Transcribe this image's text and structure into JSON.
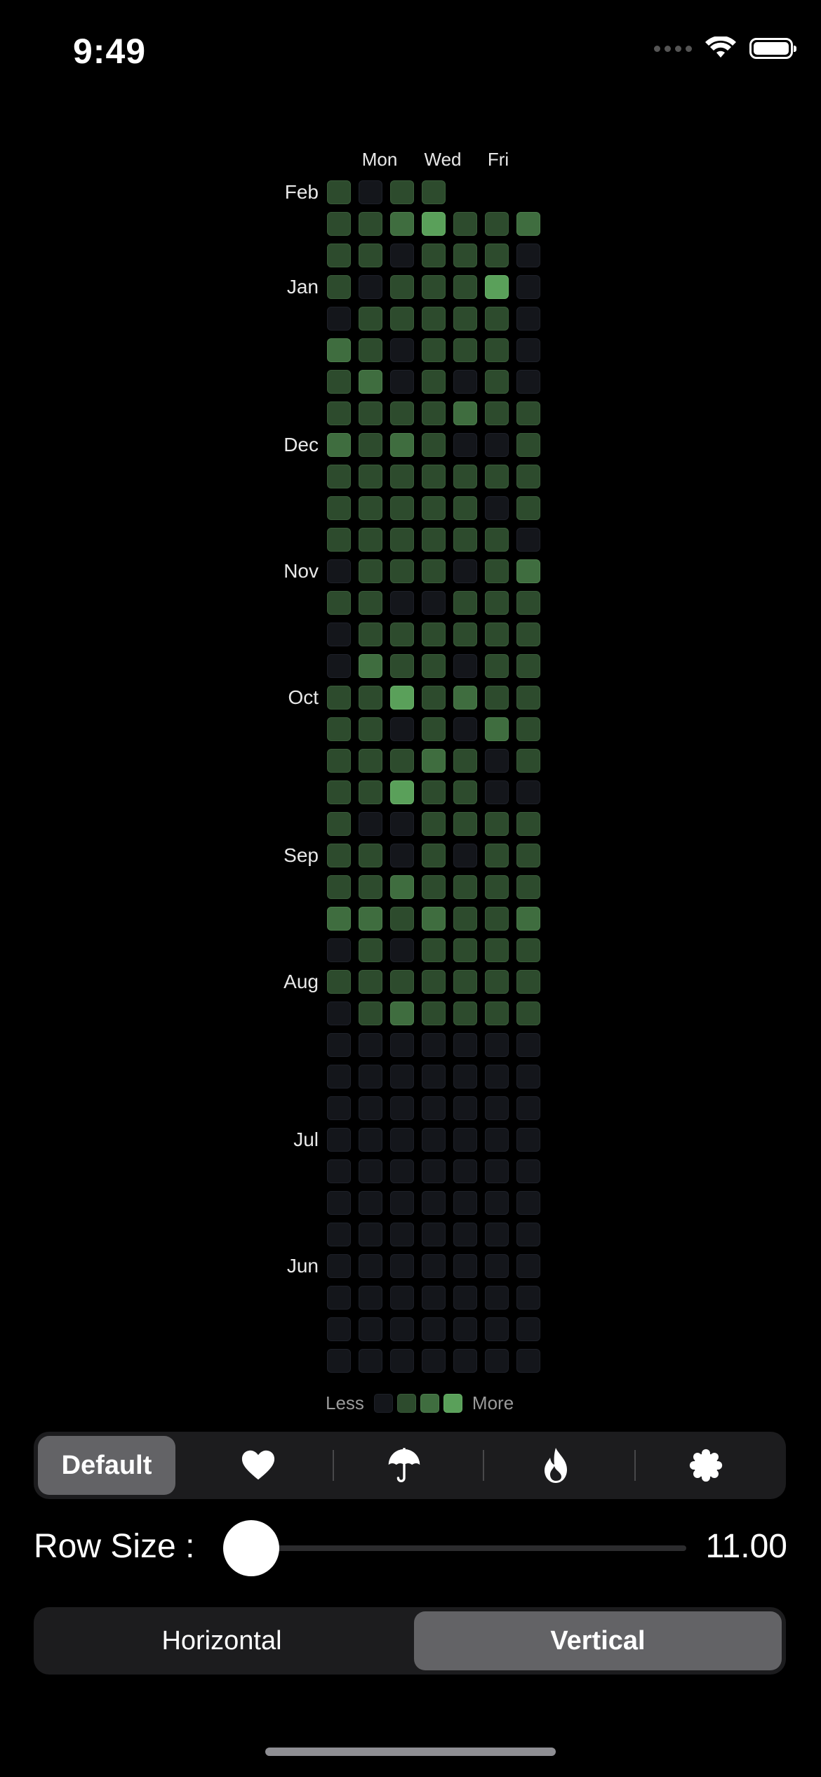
{
  "status_bar": {
    "time": "9:49"
  },
  "heatmap": {
    "day_labels": [
      "Mon",
      "Wed",
      "Fri"
    ],
    "month_labels": [
      "Feb",
      "Jan",
      "Dec",
      "Nov",
      "Oct",
      "Sep",
      "Aug",
      "Jul",
      "Jun"
    ],
    "levels": [
      "1011",
      "1123112",
      "1101110",
      "1011130",
      "0111110",
      "2101110",
      "1201010",
      "1111211",
      "2121001",
      "1111111",
      "1111101",
      "1111110",
      "0111012",
      "1100111",
      "0111111",
      "0211011",
      "1131211",
      "1101021",
      "1112101",
      "1131100",
      "1001111",
      "1101011",
      "1121111",
      "2212112",
      "0101111",
      "1111111",
      "0121111",
      "0000000",
      "0000000",
      "0000000",
      "0000000",
      "0000000",
      "0000000",
      "0000000",
      "0000000",
      "0000000",
      "0000000",
      "0000000"
    ]
  },
  "legend": {
    "less": "Less",
    "more": "More"
  },
  "style_picker": {
    "selected_label": "Default",
    "icons": [
      "heart-icon",
      "umbrella-icon",
      "flame-icon",
      "seal-icon"
    ]
  },
  "row_size": {
    "label": "Row Size :",
    "value": "11.00",
    "fraction": 0.0
  },
  "orientation": {
    "options": [
      "Horizontal",
      "Vertical"
    ],
    "selected_index": 1
  },
  "colors": {
    "level0": "#14161b",
    "level1": "#2d4b2d",
    "level2": "#3f6d3f",
    "level3": "#5aa05a"
  }
}
